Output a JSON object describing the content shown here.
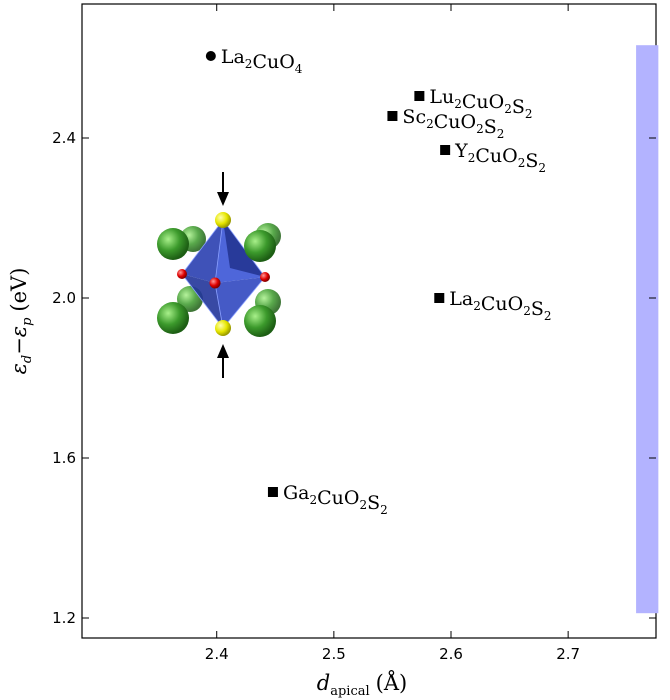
{
  "chart_data": {
    "type": "scatter",
    "xlabel": {
      "main": "d",
      "sub": "apical",
      "unit": "(Å)"
    },
    "ylabel": {
      "a": "ε",
      "a_sub": "d",
      "minus": "−",
      "b": "ε",
      "b_sub": "p",
      "unit": "(eV)"
    },
    "xlim": [
      2.285,
      2.775
    ],
    "ylim": [
      1.15,
      2.735
    ],
    "xticks": [
      2.4,
      2.5,
      2.6,
      2.7
    ],
    "xtick_labels": [
      "2.4",
      "2.5",
      "2.6",
      "2.7"
    ],
    "yticks": [
      1.2,
      1.6,
      2.0,
      2.4
    ],
    "ytick_labels": [
      "1.2",
      "1.6",
      "2.0",
      "2.4"
    ],
    "grid": false,
    "points": [
      {
        "x": 2.395,
        "y": 2.605,
        "marker": "circle",
        "label": "La₂CuO₄",
        "label_parts": [
          [
            "La",
            "2"
          ],
          [
            "CuO",
            "4"
          ]
        ]
      },
      {
        "x": 2.573,
        "y": 2.505,
        "marker": "square",
        "label": "Lu₂CuO₂S₂",
        "label_parts": [
          [
            "Lu",
            "2"
          ],
          [
            "CuO",
            "2"
          ],
          [
            "S",
            "2"
          ]
        ]
      },
      {
        "x": 2.55,
        "y": 2.455,
        "marker": "square",
        "label": "Sc₂CuO₂S₂",
        "label_parts": [
          [
            "Sc",
            "2"
          ],
          [
            "CuO",
            "2"
          ],
          [
            "S",
            "2"
          ]
        ]
      },
      {
        "x": 2.595,
        "y": 2.37,
        "marker": "square",
        "label": "Y₂CuO₂S₂",
        "label_parts": [
          [
            "Y",
            "2"
          ],
          [
            "CuO",
            "2"
          ],
          [
            "S",
            "2"
          ]
        ]
      },
      {
        "x": 2.59,
        "y": 2.0,
        "marker": "square",
        "label": "La₂CuO₂S₂",
        "label_parts": [
          [
            "La",
            "2"
          ],
          [
            "CuO",
            "2"
          ],
          [
            "S",
            "2"
          ]
        ]
      },
      {
        "x": 2.448,
        "y": 1.515,
        "marker": "square",
        "label": "Ga₂CuO₂S₂",
        "label_parts": [
          [
            "Ga",
            "2"
          ],
          [
            "CuO",
            "2"
          ],
          [
            "S",
            "2"
          ]
        ]
      }
    ],
    "band": {
      "x": [
        2.758,
        2.777
      ],
      "y": [
        1.212,
        2.632
      ],
      "color": "#b3b3ff"
    },
    "marker_color": "#000000",
    "inset": "octahedron-structure-image"
  }
}
